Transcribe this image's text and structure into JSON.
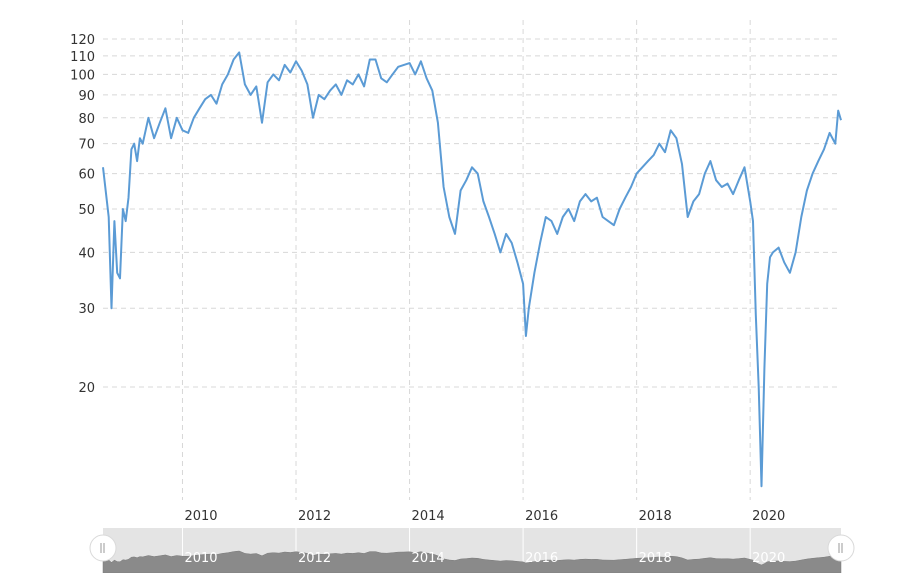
{
  "chart_data": {
    "type": "line",
    "title": "",
    "xlabel": "",
    "ylabel": "",
    "y_scale": "log",
    "ylim": [
      12,
      125
    ],
    "xlim": [
      2008.6,
      2021.6
    ],
    "y_ticks": [
      20,
      30,
      40,
      50,
      60,
      70,
      80,
      90,
      100,
      110,
      120
    ],
    "y_tick_labels": [
      "20",
      "30",
      "40",
      "50",
      "60",
      "70",
      "80",
      "90",
      "100",
      "110",
      "120"
    ],
    "x_ticks": [
      2010,
      2012,
      2014,
      2016,
      2018,
      2020
    ],
    "x_tick_labels": [
      "2010",
      "2012",
      "2014",
      "2016",
      "2018",
      "2020"
    ],
    "grid": true,
    "legend": "none",
    "colors": {
      "line": "#5b9bd5",
      "grid": "#d8d8d8",
      "navigator_fill": "#8a8a8a",
      "navigator_bg": "#e4e4e4"
    },
    "series": [
      {
        "x": [
          2008.6,
          2008.7,
          2008.75,
          2008.8,
          2008.85,
          2008.9,
          2008.95,
          2009.0,
          2009.05,
          2009.1,
          2009.15,
          2009.2,
          2009.25,
          2009.3,
          2009.4,
          2009.5,
          2009.6,
          2009.7,
          2009.8,
          2009.9,
          2010.0,
          2010.1,
          2010.2,
          2010.3,
          2010.4,
          2010.5,
          2010.6,
          2010.7,
          2010.8,
          2010.9,
          2011.0,
          2011.1,
          2011.2,
          2011.3,
          2011.4,
          2011.5,
          2011.6,
          2011.7,
          2011.8,
          2011.9,
          2012.0,
          2012.1,
          2012.2,
          2012.3,
          2012.4,
          2012.5,
          2012.6,
          2012.7,
          2012.8,
          2012.9,
          2013.0,
          2013.1,
          2013.2,
          2013.3,
          2013.4,
          2013.5,
          2013.6,
          2013.7,
          2013.8,
          2013.9,
          2014.0,
          2014.1,
          2014.2,
          2014.3,
          2014.4,
          2014.5,
          2014.6,
          2014.7,
          2014.8,
          2014.9,
          2015.0,
          2015.1,
          2015.2,
          2015.3,
          2015.4,
          2015.5,
          2015.6,
          2015.7,
          2015.8,
          2015.9,
          2016.0,
          2016.05,
          2016.1,
          2016.2,
          2016.3,
          2016.4,
          2016.5,
          2016.6,
          2016.7,
          2016.8,
          2016.9,
          2017.0,
          2017.1,
          2017.2,
          2017.3,
          2017.4,
          2017.5,
          2017.6,
          2017.7,
          2017.8,
          2017.9,
          2018.0,
          2018.1,
          2018.2,
          2018.3,
          2018.4,
          2018.5,
          2018.6,
          2018.7,
          2018.8,
          2018.9,
          2019.0,
          2019.1,
          2019.2,
          2019.3,
          2019.4,
          2019.5,
          2019.6,
          2019.7,
          2019.8,
          2019.9,
          2020.0,
          2020.05,
          2020.1,
          2020.15,
          2020.2,
          2020.25,
          2020.3,
          2020.35,
          2020.4,
          2020.5,
          2020.6,
          2020.7,
          2020.8,
          2020.9,
          2021.0,
          2021.1,
          2021.2,
          2021.3,
          2021.4,
          2021.5,
          2021.55,
          2021.6
        ],
        "y": [
          62,
          48,
          30,
          47,
          36,
          35,
          50,
          47,
          53,
          68,
          70,
          64,
          72,
          70,
          80,
          72,
          78,
          84,
          72,
          80,
          75,
          74,
          80,
          84,
          88,
          90,
          86,
          95,
          100,
          108,
          112,
          95,
          90,
          94,
          78,
          96,
          100,
          97,
          105,
          101,
          107,
          102,
          95,
          80,
          90,
          88,
          92,
          95,
          90,
          97,
          95,
          100,
          94,
          108,
          108,
          98,
          96,
          100,
          104,
          105,
          106,
          100,
          107,
          98,
          92,
          78,
          56,
          48,
          44,
          55,
          58,
          62,
          60,
          52,
          48,
          44,
          40,
          44,
          42,
          38,
          34,
          26,
          30,
          36,
          42,
          48,
          47,
          44,
          48,
          50,
          47,
          52,
          54,
          52,
          53,
          48,
          47,
          46,
          50,
          53,
          56,
          60,
          62,
          64,
          66,
          70,
          67,
          75,
          72,
          63,
          48,
          52,
          54,
          60,
          64,
          58,
          56,
          57,
          54,
          58,
          62,
          52,
          47,
          29,
          20,
          12,
          22,
          34,
          39,
          40,
          41,
          38,
          36,
          40,
          48,
          55,
          60,
          64,
          68,
          74,
          70,
          83,
          79
        ]
      }
    ],
    "navigator": {
      "x_tick_labels": [
        "2010",
        "2012",
        "2014",
        "2016",
        "2018",
        "2020"
      ]
    }
  }
}
